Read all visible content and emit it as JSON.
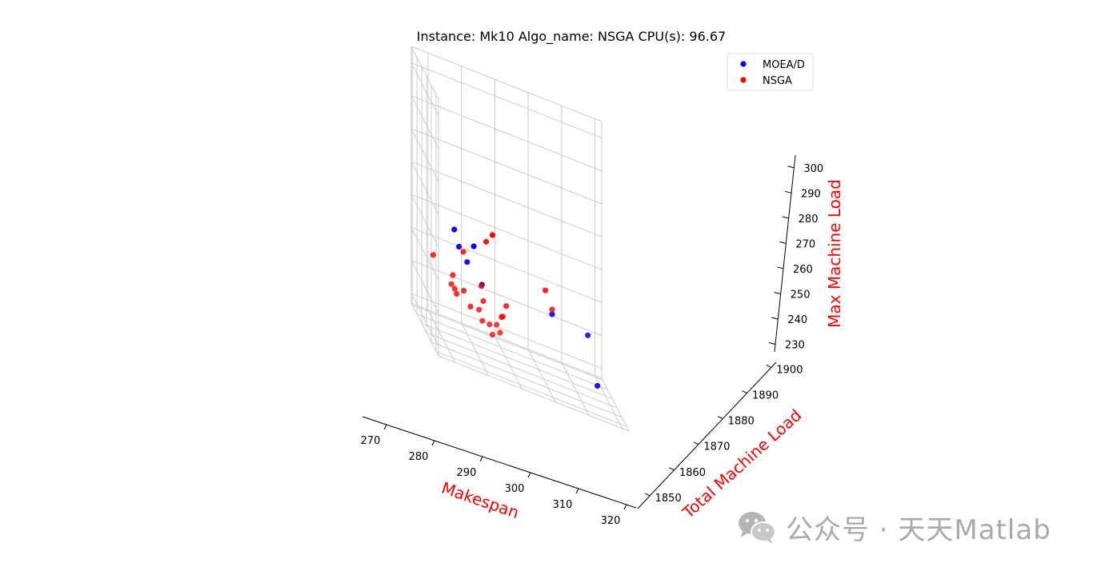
{
  "chart_data": {
    "type": "scatter3d",
    "title": "Instance: Mk10 Algo_name: NSGA CPU(s): 96.67",
    "xlabel": "Makespan",
    "ylabel": "Total Machine Load",
    "zlabel": "Max Machine Load",
    "xlim": [
      265,
      322
    ],
    "ylim": [
      1845,
      1902
    ],
    "zlim": [
      227,
      305
    ],
    "x_ticks": [
      270,
      280,
      290,
      300,
      310,
      320
    ],
    "y_ticks": [
      1850,
      1860,
      1870,
      1880,
      1890,
      1900
    ],
    "z_ticks": [
      230,
      240,
      250,
      260,
      270,
      280,
      290,
      300
    ],
    "x_tick_labels": [
      "270",
      "280",
      "290",
      "300",
      "310",
      "320"
    ],
    "y_tick_labels": [
      "1850",
      "1860",
      "1870",
      "1880",
      "1890",
      "1900"
    ],
    "z_tick_labels": [
      "230",
      "240",
      "250",
      "260",
      "270",
      "280",
      "290",
      "300"
    ],
    "grid": true,
    "legend_position": "top-right",
    "label_color": "#ff0000",
    "series": [
      {
        "name": "MOEA/D",
        "color": "#0000ff",
        "points": [
          {
            "x": 275,
            "y": 1882,
            "z": 259
          },
          {
            "x": 276,
            "y": 1879,
            "z": 255
          },
          {
            "x": 278,
            "y": 1876,
            "z": 252
          },
          {
            "x": 281,
            "y": 1883,
            "z": 256
          },
          {
            "x": 283,
            "y": 1880,
            "z": 246
          },
          {
            "x": 303,
            "y": 1873,
            "z": 247
          },
          {
            "x": 313,
            "y": 1868,
            "z": 246
          },
          {
            "x": 317,
            "y": 1876,
            "z": 230
          }
        ]
      },
      {
        "name": "NSGA",
        "color": "#ff0000",
        "points": [
          {
            "x": 266,
            "y": 1863,
            "z": 253
          },
          {
            "x": 271,
            "y": 1860,
            "z": 247
          },
          {
            "x": 272,
            "y": 1860,
            "z": 246
          },
          {
            "x": 272,
            "y": 1864,
            "z": 249
          },
          {
            "x": 273,
            "y": 1863,
            "z": 244
          },
          {
            "x": 275,
            "y": 1862,
            "z": 246
          },
          {
            "x": 277,
            "y": 1862,
            "z": 242
          },
          {
            "x": 279,
            "y": 1858,
            "z": 243
          },
          {
            "x": 280,
            "y": 1858,
            "z": 240
          },
          {
            "x": 280,
            "y": 1860,
            "z": 250
          },
          {
            "x": 281,
            "y": 1863,
            "z": 245
          },
          {
            "x": 282,
            "y": 1857,
            "z": 240
          },
          {
            "x": 283,
            "y": 1858,
            "z": 237
          },
          {
            "x": 284,
            "y": 1856,
            "z": 241
          },
          {
            "x": 285,
            "y": 1856,
            "z": 239
          },
          {
            "x": 286,
            "y": 1857,
            "z": 244
          },
          {
            "x": 286,
            "y": 1860,
            "z": 243
          },
          {
            "x": 288,
            "y": 1864,
            "z": 246
          },
          {
            "x": 276,
            "y": 1870,
            "z": 256
          },
          {
            "x": 284,
            "y": 1878,
            "z": 260
          },
          {
            "x": 287,
            "y": 1886,
            "z": 261
          },
          {
            "x": 300,
            "y": 1866,
            "z": 255
          },
          {
            "x": 302,
            "y": 1866,
            "z": 250
          }
        ]
      }
    ]
  },
  "watermark": {
    "text": "公众号 · 天天Matlab",
    "icon": "wechat-icon"
  }
}
